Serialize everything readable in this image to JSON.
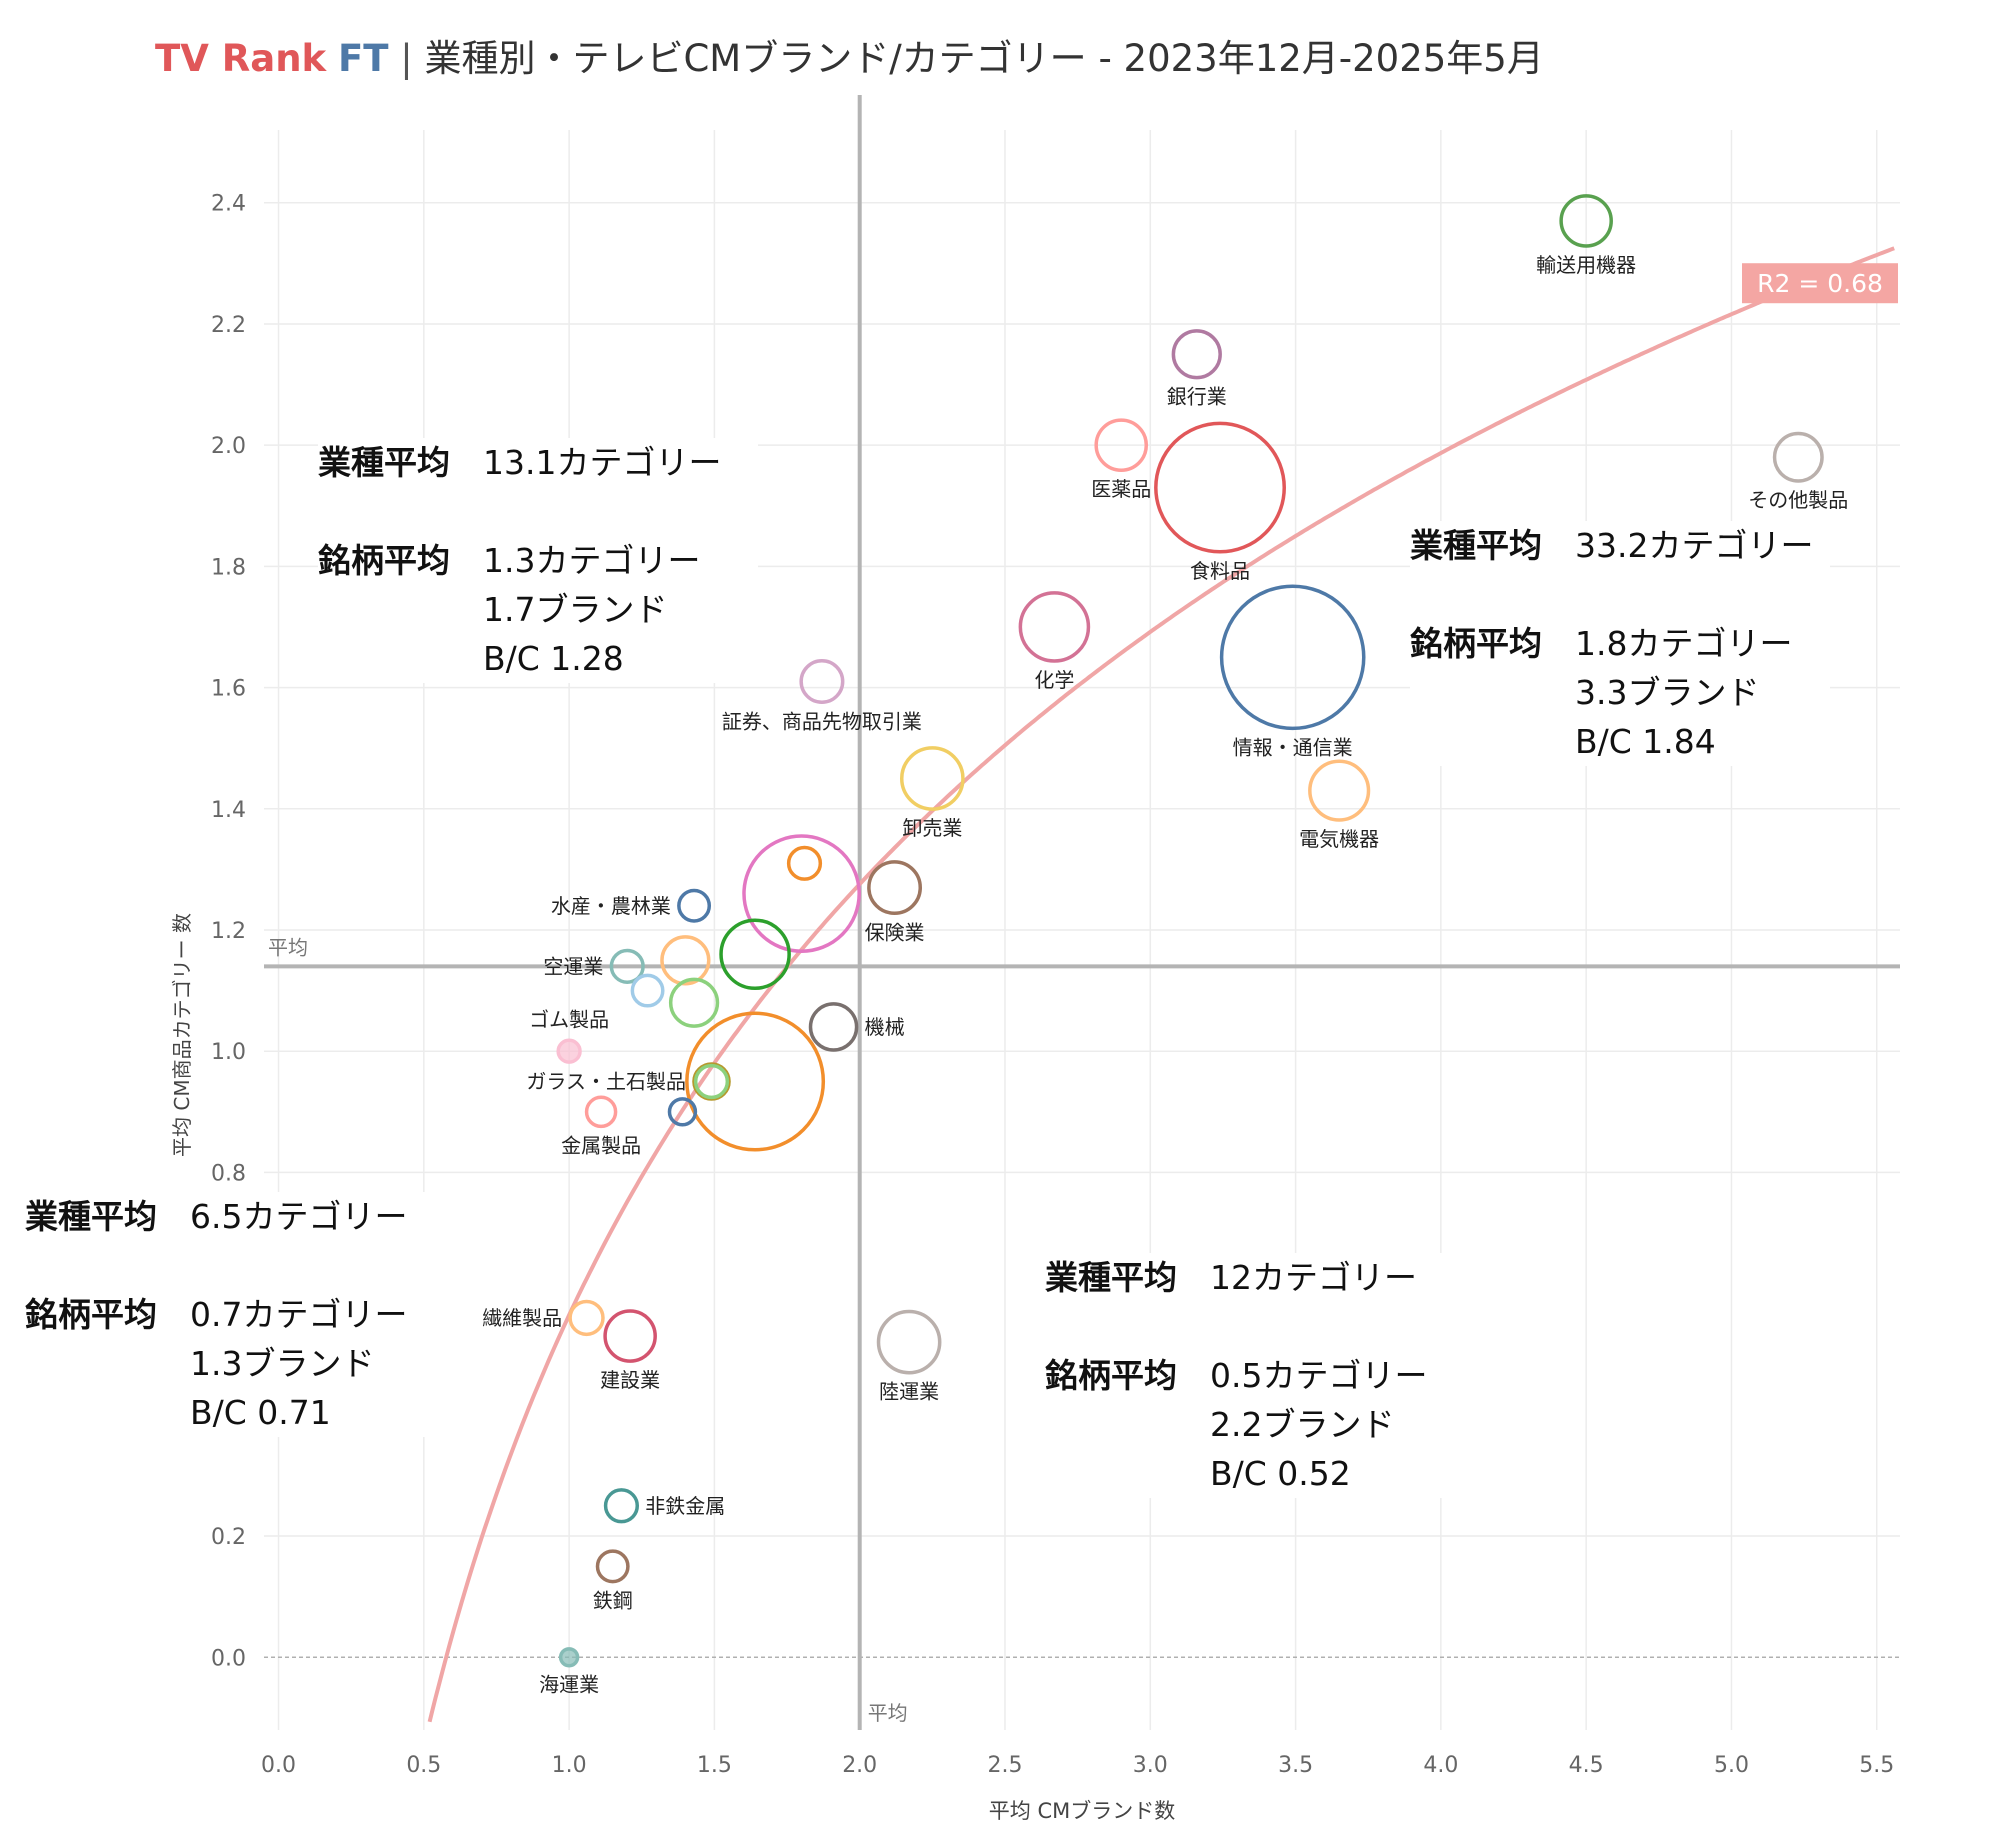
{
  "header": {
    "brand_tv": "TV Rank",
    "brand_ft": "FT",
    "separator": "|",
    "title": "業種別・テレビCMブランド/カテゴリー - 2023年12月-2025年5月"
  },
  "chart_data": {
    "type": "scatter",
    "xlabel": "平均 CMブランド数",
    "ylabel": "平均 CM商品カテゴリー 数",
    "xlim": [
      -0.05,
      5.58
    ],
    "ylim": [
      -0.12,
      2.52
    ],
    "x_ticks": [
      0.0,
      0.5,
      1.0,
      1.5,
      2.0,
      2.5,
      3.0,
      3.5,
      4.0,
      4.5,
      5.0,
      5.5
    ],
    "y_ticks": [
      0.0,
      0.2,
      0.8,
      1.0,
      1.2,
      1.4,
      1.6,
      1.8,
      2.0,
      2.2,
      2.4
    ],
    "x_tick_labels": [
      "0.0",
      "0.5",
      "1.0",
      "1.5",
      "2.0",
      "2.5",
      "3.0",
      "3.5",
      "4.0",
      "4.5",
      "5.0",
      "5.5"
    ],
    "y_tick_labels": [
      "0.0",
      "0.2",
      "0.8",
      "1.0",
      "1.2",
      "1.4",
      "1.6",
      "1.8",
      "2.0",
      "2.2",
      "2.4"
    ],
    "grid": true,
    "avg_x": 2.0,
    "avg_y": 1.14,
    "avg_label_x": "平均",
    "avg_label_y": "平均",
    "trend": {
      "type": "log",
      "r2_label": "R2 = 0.68",
      "color": "#f0a6a6"
    },
    "points": [
      {
        "name": "輸送用機器",
        "x": 4.5,
        "y": 2.37,
        "size": 3,
        "color": "#59a14f",
        "label": "below"
      },
      {
        "name": "銀行業",
        "x": 3.16,
        "y": 2.15,
        "size": 2.5,
        "color": "#b07aa1",
        "label": "below"
      },
      {
        "name": "医薬品",
        "x": 2.9,
        "y": 2.0,
        "size": 3,
        "color": "#ff9d9a",
        "label": "below"
      },
      {
        "name": "食料品",
        "x": 3.24,
        "y": 1.93,
        "size": 28,
        "color": "#e15759",
        "label": "below"
      },
      {
        "name": "その他製品",
        "x": 5.23,
        "y": 1.98,
        "size": 2.6,
        "color": "#bab0ac",
        "label": "below"
      },
      {
        "name": "化学",
        "x": 2.67,
        "y": 1.7,
        "size": 6.5,
        "color": "#d37295",
        "label": "below"
      },
      {
        "name": "情報・通信業",
        "x": 3.49,
        "y": 1.65,
        "size": 35,
        "color": "#4e79a7",
        "label": "below"
      },
      {
        "name": "証券、商品先物取引業",
        "x": 1.87,
        "y": 1.61,
        "size": 1.8,
        "color": "#d4a6c8",
        "label": "below"
      },
      {
        "name": "卸売業",
        "x": 2.25,
        "y": 1.45,
        "size": 5,
        "color": "#f1ce63",
        "label": "below"
      },
      {
        "name": "電気機器",
        "x": 3.65,
        "y": 1.43,
        "size": 4.5,
        "color": "#ffbe7d",
        "label": "below"
      },
      {
        "name": "",
        "x": 1.81,
        "y": 1.31,
        "size": 0.8,
        "color": "#f28e2b",
        "label": "none"
      },
      {
        "name": "",
        "x": 1.8,
        "y": 1.26,
        "size": 22,
        "color": "#e377c2",
        "label": "none"
      },
      {
        "name": "保険業",
        "x": 2.12,
        "y": 1.27,
        "size": 3.2,
        "color": "#9d7660",
        "label": "below"
      },
      {
        "name": "水産・農林業",
        "x": 1.43,
        "y": 1.24,
        "size": 0.7,
        "color": "#4e79a7",
        "label": "left"
      },
      {
        "name": "",
        "x": 1.64,
        "y": 1.16,
        "size": 6.5,
        "color": "#2ca02c",
        "label": "none"
      },
      {
        "name": "",
        "x": 1.4,
        "y": 1.15,
        "size": 2.5,
        "color": "#ffbe7d",
        "label": "none"
      },
      {
        "name": "空運業",
        "x": 1.2,
        "y": 1.14,
        "size": 0.8,
        "color": "#86bcb6",
        "label": "left"
      },
      {
        "name": "",
        "x": 1.27,
        "y": 1.1,
        "size": 0.7,
        "color": "#a0cbe8",
        "label": "none"
      },
      {
        "name": "",
        "x": 1.43,
        "y": 1.08,
        "size": 2.5,
        "color": "#8cd17d",
        "label": "none"
      },
      {
        "name": "機械",
        "x": 1.91,
        "y": 1.04,
        "size": 2.4,
        "color": "#79706e",
        "label": "right"
      },
      {
        "name": "ゴム製品",
        "x": 1.0,
        "y": 1.0,
        "size": 0.2,
        "color": "#fabfd2",
        "label": "above"
      },
      {
        "name": "ガラス・土石製品",
        "x": 1.49,
        "y": 0.95,
        "size": 1.1,
        "color": "#b6992d",
        "label": "left"
      },
      {
        "name": "",
        "x": 1.49,
        "y": 0.95,
        "size": 0.8,
        "color": "#8cd17d",
        "label": "none"
      },
      {
        "name": "",
        "x": 1.64,
        "y": 0.95,
        "size": 32,
        "color": "#f28e2b",
        "label": "none"
      },
      {
        "name": "",
        "x": 1.39,
        "y": 0.9,
        "size": 0.4,
        "color": "#4e79a7",
        "label": "none"
      },
      {
        "name": "金属製品",
        "x": 1.11,
        "y": 0.9,
        "size": 0.6,
        "color": "#ff9d9a",
        "label": "below"
      },
      {
        "name": "繊維製品",
        "x": 1.06,
        "y": 0.56,
        "size": 0.9,
        "color": "#ffbe7d",
        "label": "left"
      },
      {
        "name": "建設業",
        "x": 1.21,
        "y": 0.53,
        "size": 3,
        "color": "#d3546f",
        "label": "below"
      },
      {
        "name": "陸運業",
        "x": 2.17,
        "y": 0.52,
        "size": 5,
        "color": "#bab0ac",
        "label": "below"
      },
      {
        "name": "非鉄金属",
        "x": 1.18,
        "y": 0.25,
        "size": 0.8,
        "color": "#499894",
        "label": "right"
      },
      {
        "name": "鉄鋼",
        "x": 1.15,
        "y": 0.15,
        "size": 0.7,
        "color": "#9d7660",
        "label": "below"
      },
      {
        "name": "海運業",
        "x": 1.0,
        "y": 0.0,
        "size": 0.05,
        "color": "#86bcb6",
        "label": "below"
      }
    ]
  },
  "quadrants": {
    "top_left": {
      "industry_label": "業種平均",
      "industry_value": "13.1カテゴリー",
      "brand_label": "銘柄平均",
      "brand_values": [
        "1.3カテゴリー",
        "1.7ブランド",
        "B/C 1.28"
      ]
    },
    "top_right": {
      "industry_label": "業種平均",
      "industry_value": "33.2カテゴリー",
      "brand_label": "銘柄平均",
      "brand_values": [
        "1.8カテゴリー",
        "3.3ブランド",
        "B/C 1.84"
      ]
    },
    "bottom_left": {
      "industry_label": "業種平均",
      "industry_value": "6.5カテゴリー",
      "brand_label": "銘柄平均",
      "brand_values": [
        "0.7カテゴリー",
        "1.3ブランド",
        "B/C 0.71"
      ]
    },
    "bottom_right": {
      "industry_label": "業種平均",
      "industry_value": "12カテゴリー",
      "brand_label": "銘柄平均",
      "brand_values": [
        "0.5カテゴリー",
        "2.2ブランド",
        "B/C 0.52"
      ]
    }
  }
}
